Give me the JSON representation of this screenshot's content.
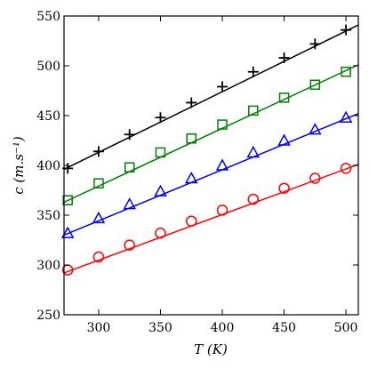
{
  "chart_data": {
    "type": "line",
    "title": "",
    "xlabel": "T (K)",
    "ylabel": "c (m.s⁻¹)",
    "xlim": [
      272,
      510
    ],
    "ylim": [
      250,
      550
    ],
    "xticks": [
      300,
      350,
      400,
      450,
      500
    ],
    "yticks": [
      250,
      300,
      350,
      400,
      450,
      500,
      550
    ],
    "grid": false,
    "legend": "none",
    "series": [
      {
        "color": "#000000",
        "marker": "plus",
        "line": [
          [
            272,
            396
          ],
          [
            510,
            541
          ]
        ],
        "x": [
          275,
          300,
          325,
          350,
          375,
          400,
          425,
          450,
          475,
          500
        ],
        "y": [
          397,
          414,
          431,
          448,
          463,
          479,
          494,
          508,
          522,
          536
        ]
      },
      {
        "color": "#008000",
        "marker": "square",
        "line": [
          [
            272,
            363
          ],
          [
            510,
            501
          ]
        ],
        "x": [
          275,
          300,
          325,
          350,
          375,
          400,
          425,
          450,
          475,
          500
        ],
        "y": [
          365,
          382,
          398,
          413,
          427,
          441,
          455,
          468,
          481,
          494
        ]
      },
      {
        "color": "#0000ff",
        "marker": "triangle",
        "line": [
          [
            272,
            330
          ],
          [
            510,
            452
          ]
        ],
        "x": [
          275,
          300,
          325,
          350,
          375,
          400,
          425,
          450,
          475,
          500
        ],
        "y": [
          332,
          347,
          361,
          374,
          387,
          400,
          413,
          425,
          436,
          448
        ]
      },
      {
        "color": "#ff0000",
        "marker": "circle",
        "line": [
          [
            272,
            292
          ],
          [
            510,
            401
          ]
        ],
        "x": [
          275,
          300,
          325,
          350,
          375,
          400,
          425,
          450,
          475,
          500
        ],
        "y": [
          295,
          308,
          320,
          332,
          344,
          355,
          366,
          377,
          387,
          397
        ]
      }
    ]
  }
}
